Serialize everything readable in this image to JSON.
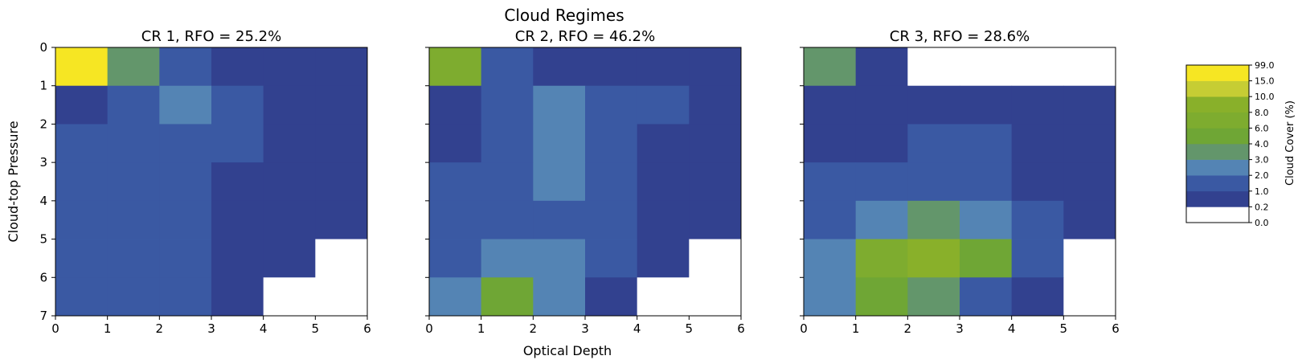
{
  "figure": {
    "suptitle": "Cloud Regimes",
    "xlabel": "Optical Depth",
    "ylabel": "Cloud-top Pressure",
    "colorbar_label": "Cloud Cover (%)"
  },
  "chart_data": [
    {
      "type": "heatmap",
      "title": "CR 1, RFO = 25.2%",
      "x_ticks": [
        "0",
        "1",
        "2",
        "3",
        "4",
        "5",
        "6"
      ],
      "y_ticks": [
        "0",
        "1",
        "2",
        "3",
        "4",
        "5",
        "6",
        "7"
      ],
      "xlim": [
        0,
        6
      ],
      "ylim": [
        7,
        0
      ],
      "row_order": "top-to-bottom (row 0 at y=0)",
      "values": [
        [
          16,
          3.5,
          1.5,
          0.6,
          0.6,
          0.6
        ],
        [
          0.6,
          1.5,
          2.5,
          1.5,
          0.6,
          0.6
        ],
        [
          1.5,
          1.5,
          1.5,
          1.5,
          0.6,
          0.6
        ],
        [
          1.5,
          1.5,
          1.5,
          0.6,
          0.6,
          0.6
        ],
        [
          1.5,
          1.5,
          1.5,
          0.6,
          0.6,
          0.6
        ],
        [
          1.5,
          1.5,
          1.5,
          0.6,
          0.6,
          0.1
        ],
        [
          1.5,
          1.5,
          1.5,
          0.6,
          0.1,
          0.1
        ]
      ]
    },
    {
      "type": "heatmap",
      "title": "CR 2, RFO = 46.2%",
      "x_ticks": [
        "0",
        "1",
        "2",
        "3",
        "4",
        "5",
        "6"
      ],
      "y_ticks": [
        "0",
        "1",
        "2",
        "3",
        "4",
        "5",
        "6",
        "7"
      ],
      "xlim": [
        0,
        6
      ],
      "ylim": [
        7,
        0
      ],
      "values": [
        [
          7,
          1.5,
          0.6,
          0.6,
          0.6,
          0.6
        ],
        [
          0.6,
          1.5,
          2.5,
          1.5,
          1.5,
          0.6
        ],
        [
          0.6,
          1.5,
          2.5,
          1.5,
          0.6,
          0.6
        ],
        [
          1.5,
          1.5,
          2.5,
          1.5,
          0.6,
          0.6
        ],
        [
          1.5,
          1.5,
          1.5,
          1.5,
          0.6,
          0.6
        ],
        [
          1.5,
          2.5,
          2.5,
          1.5,
          0.6,
          0.1
        ],
        [
          2.5,
          5,
          2.5,
          0.6,
          0.1,
          0.1
        ]
      ]
    },
    {
      "type": "heatmap",
      "title": "CR 3, RFO = 28.6%",
      "x_ticks": [
        "0",
        "1",
        "2",
        "3",
        "4",
        "5",
        "6"
      ],
      "y_ticks": [
        "0",
        "1",
        "2",
        "3",
        "4",
        "5",
        "6",
        "7"
      ],
      "xlim": [
        0,
        6
      ],
      "ylim": [
        7,
        0
      ],
      "values": [
        [
          3.5,
          0.6,
          0.1,
          0.1,
          0.1,
          0.1
        ],
        [
          0.6,
          0.6,
          0.6,
          0.6,
          0.6,
          0.6
        ],
        [
          0.6,
          0.6,
          1.5,
          1.5,
          0.6,
          0.6
        ],
        [
          1.5,
          1.5,
          1.5,
          1.5,
          0.6,
          0.6
        ],
        [
          1.5,
          2.5,
          3.5,
          2.5,
          1.5,
          0.6
        ],
        [
          2.5,
          7,
          9,
          5,
          1.5,
          0.1
        ],
        [
          2.5,
          5,
          3.5,
          1.5,
          0.6,
          0.1
        ]
      ]
    }
  ],
  "colorbar": {
    "boundaries": [
      0.0,
      0.2,
      1.0,
      2.0,
      3.0,
      4.0,
      6.0,
      8.0,
      10.0,
      15.0,
      99.0
    ],
    "tick_labels": [
      "0.0",
      "0.2",
      "1.0",
      "2.0",
      "3.0",
      "4.0",
      "6.0",
      "8.0",
      "10.0",
      "15.0",
      "99.0"
    ],
    "colors": [
      "#ffffff",
      "#32418f",
      "#3a59a3",
      "#5484b4",
      "#63966b",
      "#6fa635",
      "#7eac2f",
      "#89b02a",
      "#c6cd34",
      "#f6e623"
    ]
  }
}
